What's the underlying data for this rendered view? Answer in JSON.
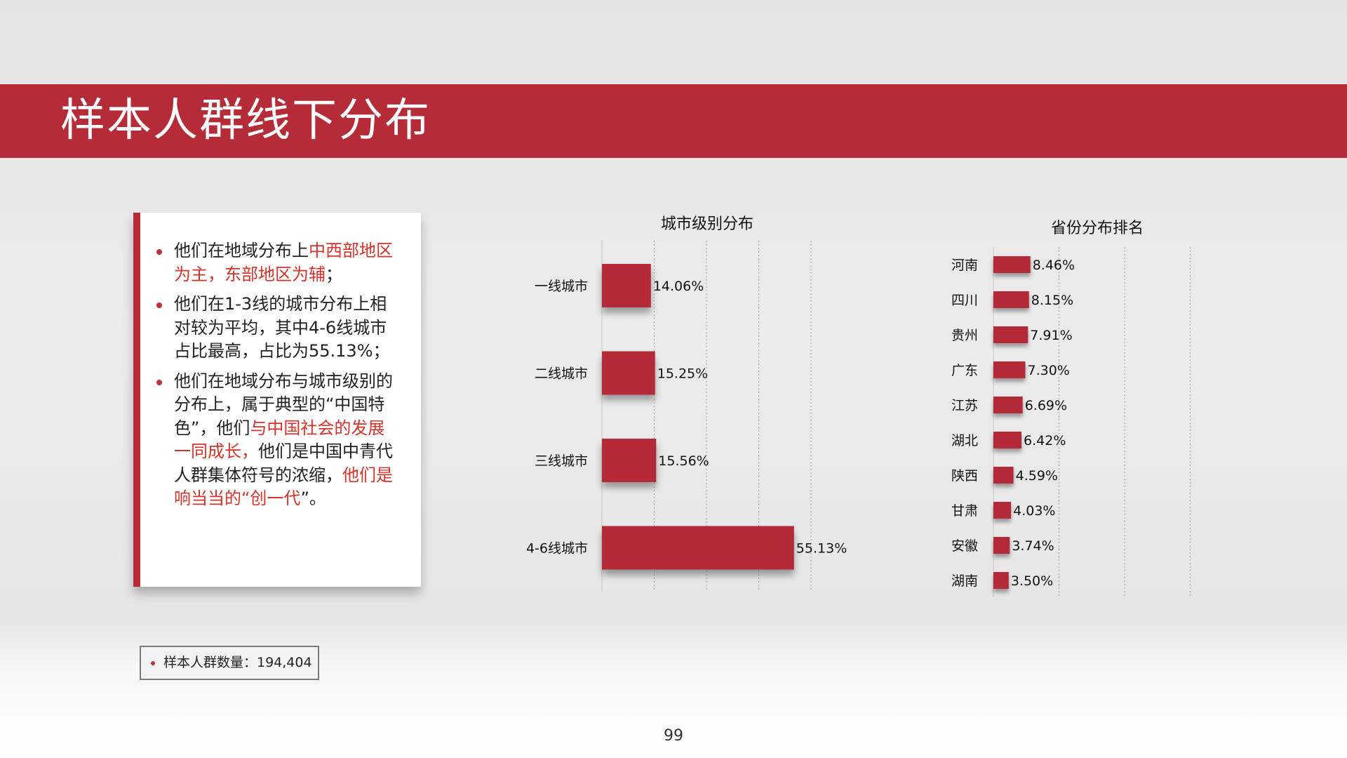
{
  "slide": {
    "title": "样本人群线下分布",
    "page_number": "99",
    "sample_note": "样本人群数量：194,404",
    "accent_color": "#b52b37"
  },
  "bullets": [
    [
      {
        "text": "他们在地域分布上",
        "red": false
      },
      {
        "text": "中西部地区为主，东部地区为辅",
        "red": true
      },
      {
        "text": "；",
        "red": false
      }
    ],
    [
      {
        "text": "他们在1-3线的城市分布上相对较为平均，其中4-6线城市占比最高，占比为55.13%；",
        "red": false
      }
    ],
    [
      {
        "text": "他们在地域分布与城市级别的分布上，属于典型的“中国特色”，他们",
        "red": false
      },
      {
        "text": "与中国社会的发展一同成长，",
        "red": true
      },
      {
        "text": "他们是中国中青代人群集体符号的浓缩，",
        "red": false
      },
      {
        "text": "他们是响当当的“创一代",
        "red": true
      },
      {
        "text": "”。",
        "red": false
      }
    ]
  ],
  "chart_data": [
    {
      "type": "bar",
      "orientation": "horizontal",
      "title": "城市级别分布",
      "categories": [
        "一线城市",
        "二线城市",
        "三线城市",
        "4-6线城市"
      ],
      "values": [
        14.06,
        15.25,
        15.56,
        55.13
      ],
      "labels": [
        "14.06%",
        "15.25%",
        "15.56%",
        "55.13%"
      ],
      "xlim": [
        0,
        60
      ],
      "grid": true,
      "color": "#b52b37"
    },
    {
      "type": "bar",
      "orientation": "horizontal",
      "title": "省份分布排名",
      "categories": [
        "河南",
        "四川",
        "贵州",
        "广东",
        "江苏",
        "湖北",
        "陕西",
        "甘肃",
        "安徽",
        "湖南"
      ],
      "values": [
        8.46,
        8.15,
        7.91,
        7.3,
        6.69,
        6.42,
        4.59,
        4.03,
        3.74,
        3.5
      ],
      "labels": [
        "8.46%",
        "8.15%",
        "7.91%",
        "7.30%",
        "6.69%",
        "6.42%",
        "4.59%",
        "4.03%",
        "3.74%",
        "3.50%"
      ],
      "xlim": [
        0,
        60
      ],
      "grid": true,
      "color": "#b52b37"
    }
  ]
}
